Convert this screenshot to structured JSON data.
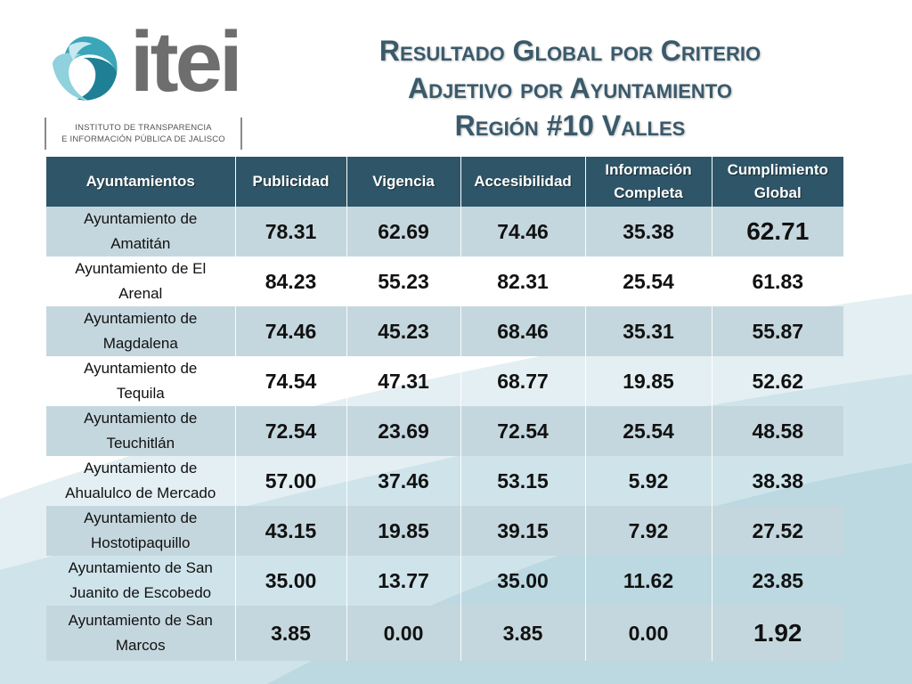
{
  "logo": {
    "mark": "itei-swirl-logo",
    "wordmark": "itei",
    "subtitle_line1": "INSTITUTO DE TRANSPARENCIA",
    "subtitle_line2": "E INFORMACIÓN PÚBLICA DE JALISCO"
  },
  "title": {
    "line1": "Resultado Global por Criterio",
    "line2": "Adjetivo por Ayuntamiento",
    "line3": "Región #10 Valles"
  },
  "table": {
    "headers": {
      "col1": "Ayuntamientos",
      "col2": "Publicidad",
      "col3": "Vigencia",
      "col4": "Accesibilidad",
      "col5_line1": "Información",
      "col5_line2": "Completa",
      "col6_line1": "Cumplimiento",
      "col6_line2": "Global"
    },
    "rows": [
      {
        "name_line1": "Ayuntamiento de",
        "name_line2": "Amatitán",
        "publicidad": "78.31",
        "vigencia": "62.69",
        "accesibilidad": "74.46",
        "informacion": "35.38",
        "global": "62.71"
      },
      {
        "name_line1": "Ayuntamiento de El",
        "name_line2": "Arenal",
        "publicidad": "84.23",
        "vigencia": "55.23",
        "accesibilidad": "82.31",
        "informacion": "25.54",
        "global": "61.83"
      },
      {
        "name_line1": "Ayuntamiento de",
        "name_line2": "Magdalena",
        "publicidad": "74.46",
        "vigencia": "45.23",
        "accesibilidad": "68.46",
        "informacion": "35.31",
        "global": "55.87"
      },
      {
        "name_line1": "Ayuntamiento de",
        "name_line2": "Tequila",
        "publicidad": "74.54",
        "vigencia": "47.31",
        "accesibilidad": "68.77",
        "informacion": "19.85",
        "global": "52.62"
      },
      {
        "name_line1": "Ayuntamiento de",
        "name_line2": "Teuchitlán",
        "publicidad": "72.54",
        "vigencia": "23.69",
        "accesibilidad": "72.54",
        "informacion": "25.54",
        "global": "48.58"
      },
      {
        "name_line1": "Ayuntamiento de",
        "name_line2": "Ahualulco de Mercado",
        "publicidad": "57.00",
        "vigencia": "37.46",
        "accesibilidad": "53.15",
        "informacion": "5.92",
        "global": "38.38"
      },
      {
        "name_line1": "Ayuntamiento de",
        "name_line2": "Hostotipaquillo",
        "publicidad": "43.15",
        "vigencia": "19.85",
        "accesibilidad": "39.15",
        "informacion": "7.92",
        "global": "27.52"
      },
      {
        "name_line1": "Ayuntamiento de San",
        "name_line2": "Juanito de Escobedo",
        "publicidad": "35.00",
        "vigencia": "13.77",
        "accesibilidad": "35.00",
        "informacion": "11.62",
        "global": "23.85"
      },
      {
        "name_line1": "Ayuntamiento de San",
        "name_line2": "Marcos",
        "publicidad": "3.85",
        "vigencia": "0.00",
        "accesibilidad": "3.85",
        "informacion": "0.00",
        "global": "1.92"
      }
    ]
  },
  "colors": {
    "header_bg": "#2e5668",
    "title_text": "#3a5a6b",
    "row_band": "#c5d7de",
    "background_wave": "#cfe3ea"
  }
}
